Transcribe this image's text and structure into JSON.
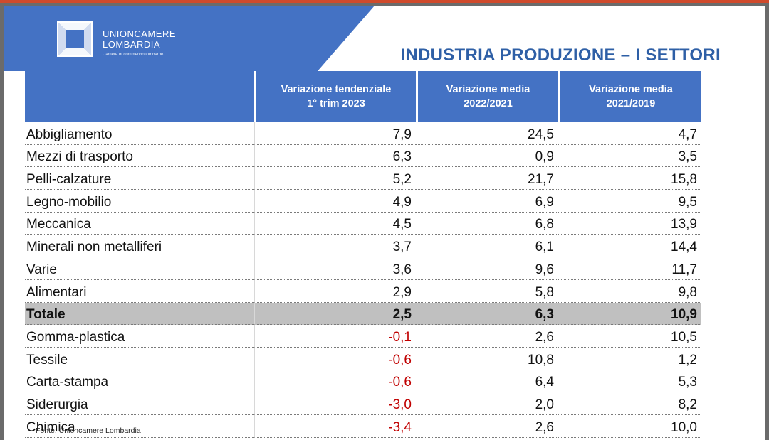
{
  "logo": {
    "line1": "UNIONCAMERE",
    "line2": "LOMBARDIA",
    "sub": "Camere di commercio lombarde"
  },
  "title": "INDUSTRIA PRODUZIONE – I SETTORI",
  "table": {
    "headers": [
      "",
      "Variazione tendenziale 1° trim 2023",
      "Variazione media 2022/2021",
      "Variazione media 2021/2019"
    ],
    "rows": [
      {
        "label": "Abbigliamento",
        "v1": "7,9",
        "v2": "24,5",
        "v3": "4,7"
      },
      {
        "label": "Mezzi di trasporto",
        "v1": "6,3",
        "v2": "0,9",
        "v3": "3,5"
      },
      {
        "label": "Pelli-calzature",
        "v1": "5,2",
        "v2": "21,7",
        "v3": "15,8"
      },
      {
        "label": "Legno-mobilio",
        "v1": "4,9",
        "v2": "6,9",
        "v3": "9,5"
      },
      {
        "label": "Meccanica",
        "v1": "4,5",
        "v2": "6,8",
        "v3": "13,9"
      },
      {
        "label": "Minerali non metalliferi",
        "v1": "3,7",
        "v2": "6,1",
        "v3": "14,4"
      },
      {
        "label": "Varie",
        "v1": "3,6",
        "v2": "9,6",
        "v3": "11,7"
      },
      {
        "label": "Alimentari",
        "v1": "2,9",
        "v2": "5,8",
        "v3": "9,8"
      },
      {
        "label": "Totale",
        "v1": "2,5",
        "v2": "6,3",
        "v3": "10,9",
        "total": true
      },
      {
        "label": "Gomma-plastica",
        "v1": "-0,1",
        "v2": "2,6",
        "v3": "10,5"
      },
      {
        "label": "Tessile",
        "v1": "-0,6",
        "v2": "10,8",
        "v3": "1,2"
      },
      {
        "label": "Carta-stampa",
        "v1": "-0,6",
        "v2": "6,4",
        "v3": "5,3"
      },
      {
        "label": "Siderurgia",
        "v1": "-3,0",
        "v2": "2,0",
        "v3": "8,2"
      },
      {
        "label": "Chimica",
        "v1": "-3,4",
        "v2": "2,6",
        "v3": "10,0"
      }
    ]
  },
  "source": "Fonte: Unioncamere Lombardia",
  "colors": {
    "header_blue": "#4472c4",
    "title_blue": "#2e5fa6",
    "negative_red": "#c00000",
    "total_grey": "#c0c0c0"
  }
}
